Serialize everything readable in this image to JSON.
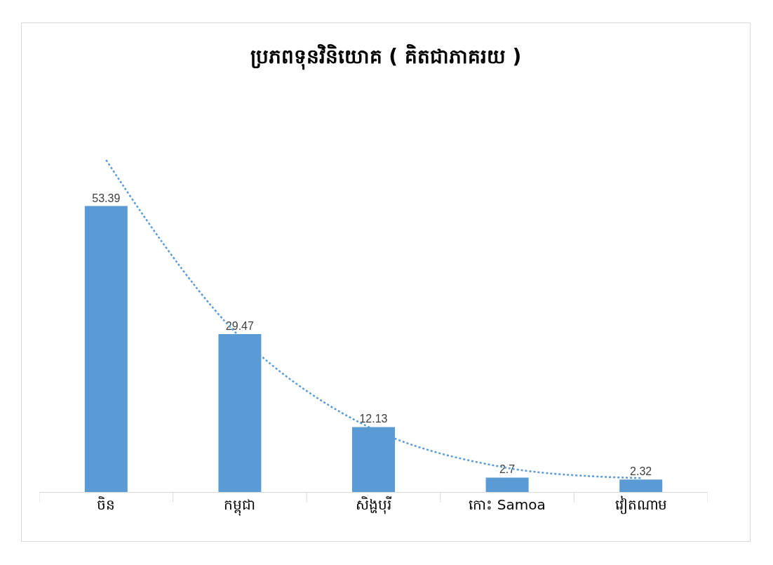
{
  "chart_data": {
    "type": "bar",
    "title": "ប្រភពទុនវិនិយោគ ( គិតជាភាគរយ )",
    "categories": [
      "ចិន",
      "កម្ពុជា",
      "សិង្ហបុរី",
      "កោះ Samoa",
      "វៀតណាម"
    ],
    "series": [
      {
        "color": "#5b9bd5",
        "values": [
          53.39,
          29.47,
          12.13,
          2.7,
          2.32
        ],
        "value_labels": [
          "53.39",
          "29.47",
          "12.13",
          "2.7",
          "2.32"
        ]
      },
      {
        "type": "line",
        "color": "#5b9bd5",
        "line_style": "dotted",
        "values": [
          62,
          29,
          11.7,
          4.5,
          2.6
        ]
      }
    ]
  }
}
